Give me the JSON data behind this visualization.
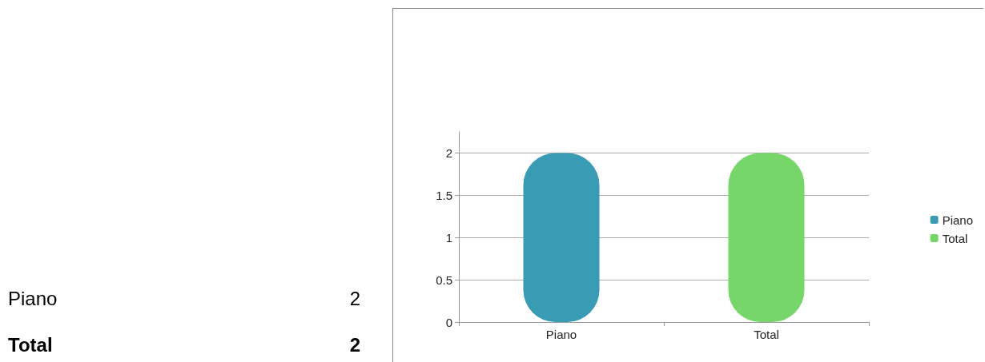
{
  "chart_data": [
    {
      "type": "other",
      "categories": [
        "Piano",
        "Total"
      ],
      "values": [
        2,
        2
      ],
      "data_labels": true
    },
    {
      "type": "bar",
      "categories": [
        "Piano",
        "Total"
      ],
      "series": [
        {
          "name": "Piano",
          "color": "#3a9bb5",
          "values": [
            2,
            null
          ]
        },
        {
          "name": "Total",
          "color": "#76d66a",
          "values": [
            null,
            2
          ]
        }
      ],
      "ylim": [
        0,
        2.25
      ],
      "yticks": [
        0,
        0.5,
        1,
        1.5,
        2
      ],
      "grid": "y",
      "legend": "right"
    }
  ]
}
